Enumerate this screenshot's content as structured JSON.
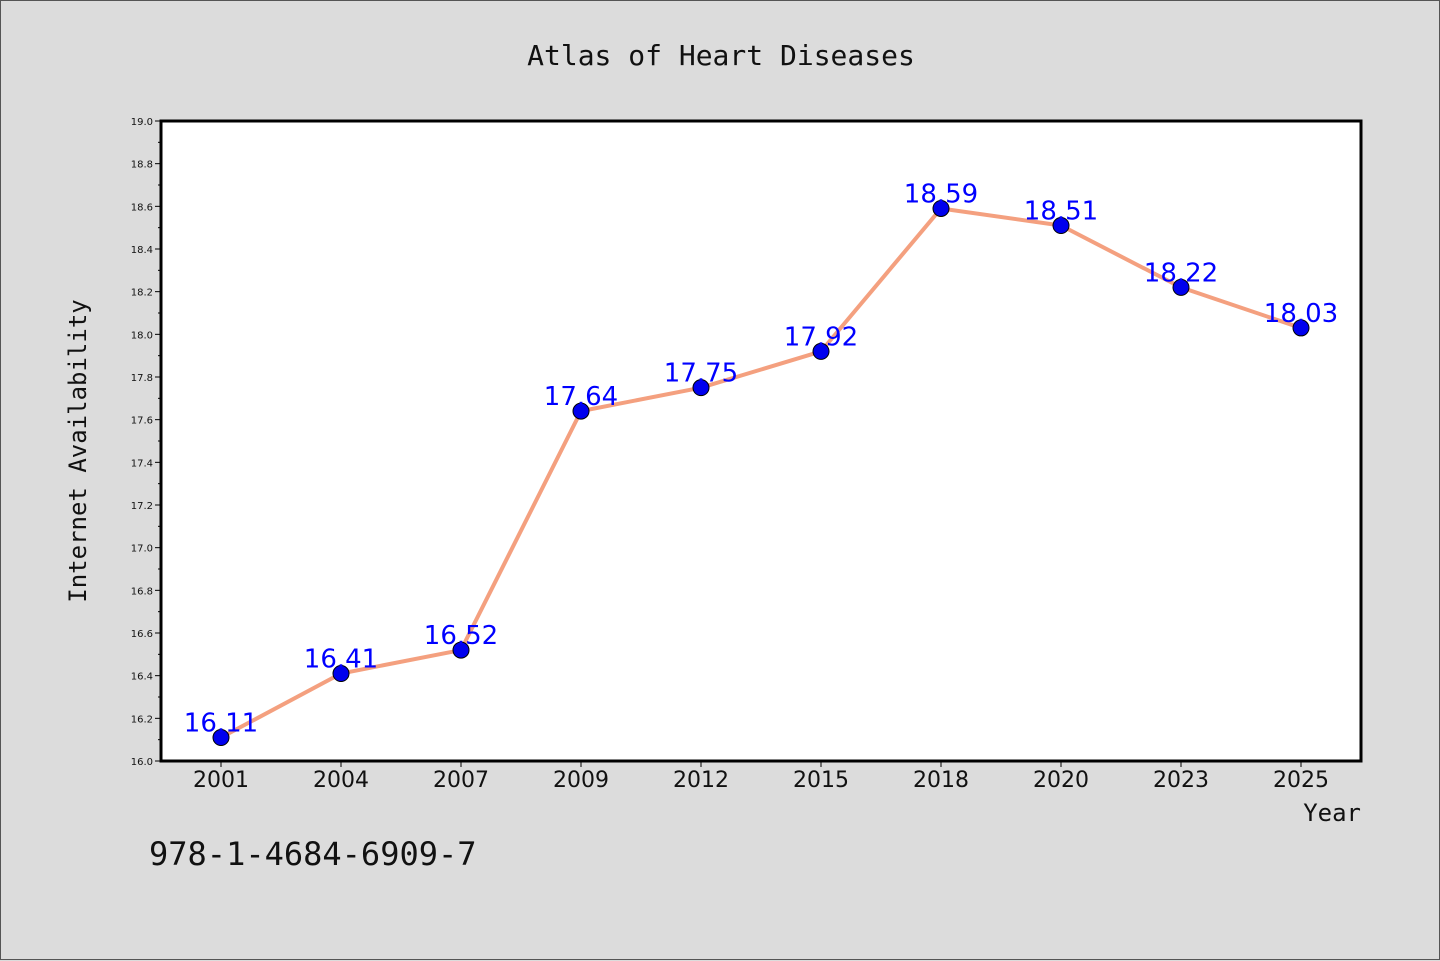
{
  "chart_data": {
    "type": "line",
    "title": "Atlas of Heart Diseases",
    "xlabel": "Year",
    "ylabel": "Internet Availability",
    "categories": [
      "2001",
      "2004",
      "2007",
      "2009",
      "2012",
      "2015",
      "2018",
      "2020",
      "2023",
      "2025"
    ],
    "series": [
      {
        "values": [
          16.11,
          16.41,
          16.52,
          17.64,
          17.75,
          17.92,
          18.59,
          18.51,
          18.22,
          18.03
        ]
      }
    ],
    "data_labels": [
      "16.11",
      "16.41",
      "16.52",
      "17.64",
      "17.75",
      "17.92",
      "18.59",
      "18.51",
      "18.22",
      "18.03"
    ],
    "ylim": [
      16.0,
      19.0
    ],
    "yticks": [
      "16.0",
      "16.2",
      "16.4",
      "16.6",
      "16.8",
      "17.0",
      "17.2",
      "17.4",
      "17.6",
      "17.8",
      "18.0",
      "18.2",
      "18.4",
      "18.6",
      "18.8",
      "19.0"
    ],
    "grid": false,
    "legend": "none",
    "colors": {
      "line": "#f4a07f",
      "marker": "#0000ee",
      "label": "#0000ff",
      "background": "#dcdcdc",
      "plot_area": "#ffffff"
    }
  },
  "footer": {
    "isbn": "978-1-4684-6909-7"
  }
}
